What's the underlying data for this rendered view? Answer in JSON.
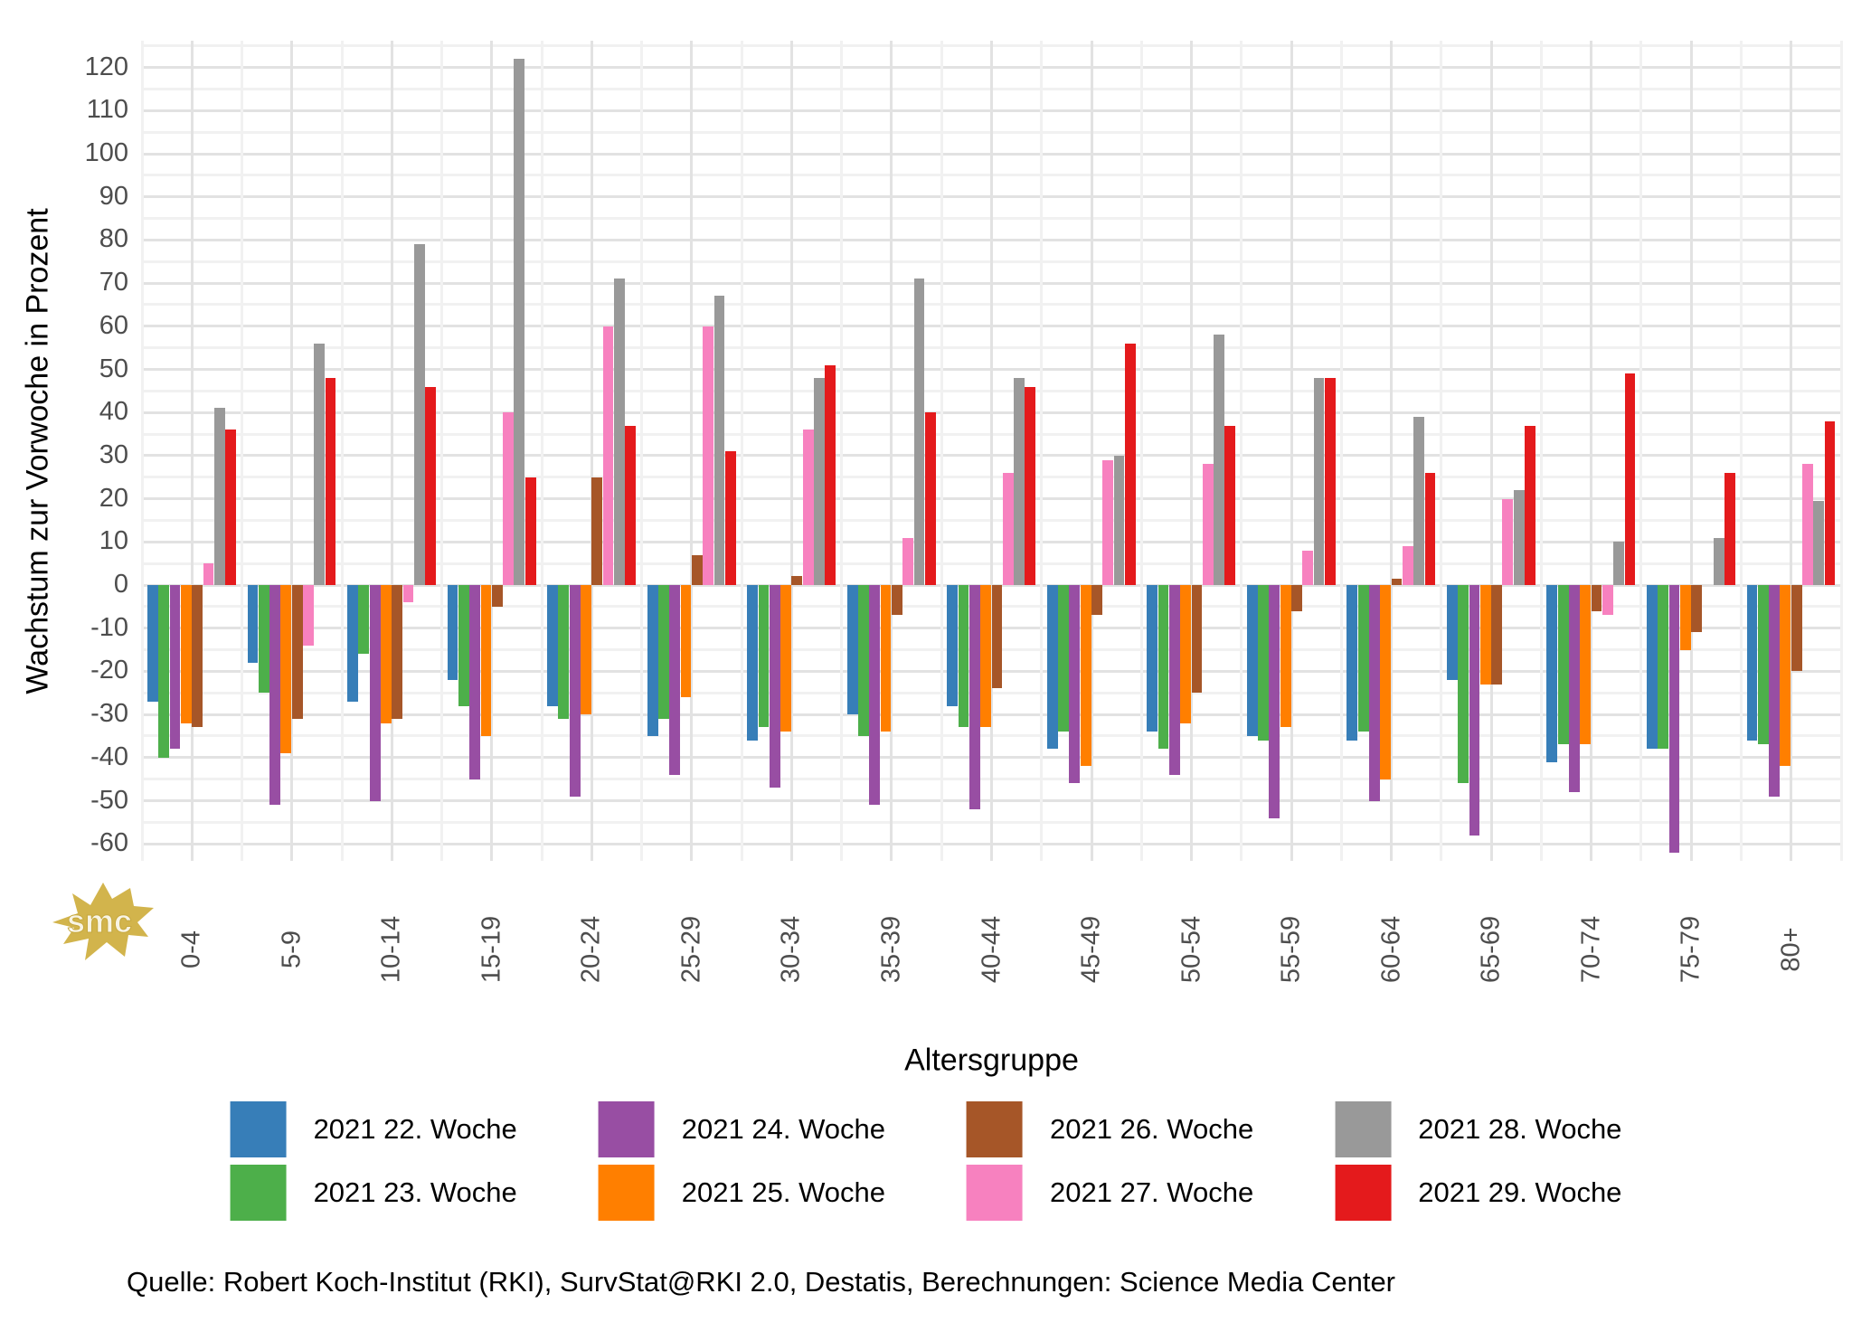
{
  "chart_data": {
    "type": "bar",
    "title": "",
    "xlabel": "Altersgruppe",
    "ylabel": "Wachstum zur Vorwoche in Prozent",
    "ylim": [
      -65,
      127
    ],
    "y_ticks": [
      120,
      110,
      100,
      90,
      80,
      70,
      60,
      50,
      40,
      30,
      20,
      10,
      0,
      -10,
      -20,
      -30,
      -40,
      -50,
      -60
    ],
    "grid": "on",
    "legend_position": "bottom",
    "categories": [
      "0-4",
      "5-9",
      "10-14",
      "15-19",
      "20-24",
      "25-29",
      "30-34",
      "35-39",
      "40-44",
      "45-49",
      "50-54",
      "55-59",
      "60-64",
      "65-69",
      "70-74",
      "75-79",
      "80+"
    ],
    "series": [
      {
        "name": "2021 22. Woche",
        "color": "#377eb8",
        "values": [
          -27,
          -18,
          -27,
          -22,
          -28,
          -35,
          -36,
          -30,
          -28,
          -38,
          -34,
          -35,
          -36,
          -22,
          -41,
          -38,
          -36
        ]
      },
      {
        "name": "2021 23. Woche",
        "color": "#4daf4a",
        "values": [
          -40,
          -25,
          -16,
          -28,
          -31,
          -31,
          -33,
          -35,
          -33,
          -34,
          -38,
          -36,
          -34,
          -46,
          -37,
          -38,
          -37
        ]
      },
      {
        "name": "2021 24. Woche",
        "color": "#984ea3",
        "values": [
          -38,
          -51,
          -50,
          -45,
          -49,
          -44,
          -47,
          -51,
          -52,
          -46,
          -44,
          -54,
          -50,
          -58,
          -48,
          -62,
          -49
        ]
      },
      {
        "name": "2021 25. Woche",
        "color": "#ff7f00",
        "values": [
          -32,
          -39,
          -32,
          -35,
          -30,
          -26,
          -34,
          -34,
          -33,
          -42,
          -32,
          -33,
          -45,
          -23,
          -37,
          -15,
          -42
        ]
      },
      {
        "name": "2021 26. Woche",
        "color": "#a65628",
        "values": [
          -33,
          -31,
          -31,
          -5,
          25,
          7,
          2,
          -7,
          -24,
          -7,
          -25,
          -6,
          1.5,
          -23,
          -6,
          -11,
          -20
        ]
      },
      {
        "name": "2021 27. Woche",
        "color": "#f781bf",
        "values": [
          5,
          -14,
          -4,
          40,
          60,
          60,
          36,
          11,
          26,
          29,
          28,
          8,
          9,
          20,
          -7,
          0,
          28
        ]
      },
      {
        "name": "2021 28. Woche",
        "color": "#999999",
        "values": [
          41,
          56,
          79,
          122,
          71,
          67,
          48,
          71,
          48,
          30,
          58,
          48,
          39,
          22,
          10,
          11,
          19.5
        ]
      },
      {
        "name": "2021 29. Woche",
        "color": "#e41a1c",
        "values": [
          36,
          48,
          46,
          25,
          37,
          31,
          51,
          40,
          46,
          56,
          37,
          48,
          26,
          37,
          49,
          26,
          38
        ]
      }
    ]
  },
  "source_line": "Quelle: Robert Koch-Institut (RKI), SurvStat@RKI 2.0, Destatis, Berechnungen: Science Media Center",
  "logo": {
    "text": "smc",
    "color": "#d2b44c",
    "text_color": "#ffffff"
  }
}
